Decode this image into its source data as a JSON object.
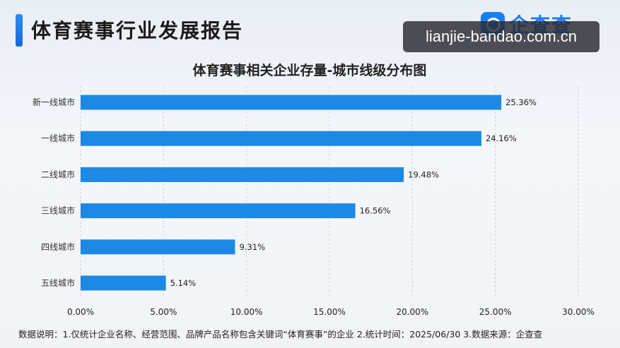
{
  "header": {
    "title": "体育赛事行业发展报告",
    "brand_name": "企查查",
    "watermark": "lianjie-bandao.com.cn"
  },
  "chart_data": {
    "type": "bar",
    "orientation": "horizontal",
    "title": "体育赛事相关企业存量-城市线级分布图",
    "categories": [
      "新一线城市",
      "一线城市",
      "二线城市",
      "三线城市",
      "四线城市",
      "五线城市"
    ],
    "values": [
      25.36,
      24.16,
      19.48,
      16.56,
      9.31,
      5.14
    ],
    "value_labels": [
      "25.36%",
      "24.16%",
      "19.48%",
      "16.56%",
      "9.31%",
      "5.14%"
    ],
    "xlim": [
      0,
      30
    ],
    "xticks": [
      0,
      5,
      10,
      15,
      20,
      25,
      30
    ],
    "xtick_labels": [
      "0.00%",
      "5.00%",
      "10.00%",
      "15.00%",
      "20.00%",
      "25.00%",
      "30.00%"
    ],
    "grid": true,
    "bar_color": "#1e88e5"
  },
  "footnote": "数据说明：1.仅统计企业名称、经营范围、品牌产品名称包含关键词“体育赛事”的企业  2.统计时间：2025/06/30  3.数据来源：企查查"
}
